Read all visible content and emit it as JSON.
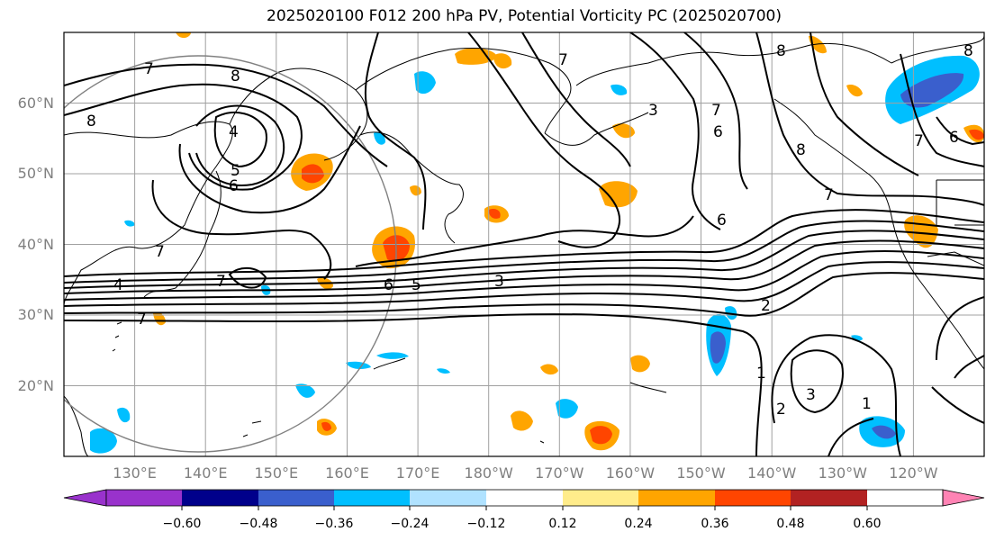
{
  "title": "2025020100 F012 200 hPa PV, Potential Vorticity PC (2025020700)",
  "lat_labels": [
    "60°N",
    "50°N",
    "40°N",
    "30°N",
    "20°N"
  ],
  "lon_labels": [
    "130°E",
    "140°E",
    "150°E",
    "160°E",
    "170°E",
    "180°W",
    "170°W",
    "160°W",
    "150°W",
    "140°W",
    "130°W",
    "120°W"
  ],
  "colorbar": {
    "ticks": [
      "−0.60",
      "−0.48",
      "−0.36",
      "−0.24",
      "−0.12",
      "0.12",
      "0.24",
      "0.36",
      "0.48",
      "0.60"
    ],
    "colors": [
      "#9932cc",
      "#00008b",
      "#3a5fcd",
      "#00bfff",
      "#b0e2ff",
      "#ffffff",
      "#ffec8b",
      "#ffa500",
      "#ff4500",
      "#b22222",
      "#ff83b4"
    ]
  },
  "contour_labels": [
    "7",
    "8",
    "8",
    "4",
    "5",
    "6",
    "7",
    "7",
    "4",
    "7",
    "6",
    "5",
    "3",
    "8",
    "6",
    "7",
    "8",
    "7",
    "3",
    "8",
    "7",
    "6",
    "6",
    "7",
    "2",
    "1",
    "2",
    "3",
    "1"
  ],
  "projection": "cylindrical",
  "extent": {
    "lon": [
      120,
      250
    ],
    "lat": [
      10,
      70
    ]
  },
  "shading_variable": "Potential Vorticity PC",
  "contour_variable": "200 hPa PV"
}
